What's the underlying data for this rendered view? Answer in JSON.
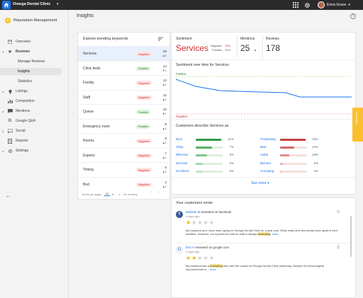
{
  "topbar": {
    "org_name": "Omega Dental Clinic",
    "user_name": "Erica Grace"
  },
  "sidebar": {
    "brand": "Reputation Management",
    "items": [
      {
        "label": "Overview"
      },
      {
        "label": "Reviews"
      },
      {
        "label": "Manage Reviews"
      },
      {
        "label": "Insights"
      },
      {
        "label": "Statistics"
      },
      {
        "label": "Listings"
      },
      {
        "label": "Competition"
      },
      {
        "label": "Mentions"
      },
      {
        "label": "Google Q&A"
      },
      {
        "label": "Social"
      },
      {
        "label": "Reports"
      },
      {
        "label": "Settings"
      }
    ]
  },
  "page": {
    "title": "Insights"
  },
  "keywords": {
    "title": "Explore trending keywords",
    "rows": [
      {
        "name": "Services",
        "badge": "Negative",
        "count": "28",
        "trend": "▲1"
      },
      {
        "name": "Clinic beds",
        "badge": "Positive",
        "count": "14",
        "trend": "▼1"
      },
      {
        "name": "Facility",
        "badge": "Negative",
        "count": "13",
        "trend": "▲1"
      },
      {
        "name": "Staff",
        "badge": "Negative",
        "count": "12",
        "trend": "▲1"
      },
      {
        "name": "Queue",
        "badge": "Positive",
        "count": "10",
        "trend": "▼1"
      },
      {
        "name": "Emergency room",
        "badge": "Positive",
        "count": "9",
        "trend": "▲1"
      },
      {
        "name": "Rooms",
        "badge": "Negative",
        "count": "8",
        "trend": "▲1"
      },
      {
        "name": "Experts",
        "badge": "Negative",
        "count": "7",
        "trend": "▲1"
      },
      {
        "name": "Timing",
        "badge": "Negative",
        "count": "5",
        "trend": "▲1"
      },
      {
        "name": "Bed",
        "badge": "Negative",
        "count": "2",
        "trend": "▲1"
      }
    ],
    "footer": {
      "per_page_label": "Items per page:",
      "per_page_value": "10",
      "range": "1 – 10 of many"
    }
  },
  "summary": {
    "sentiment_label": "Sentiment",
    "sentiment_value": "Services",
    "negative_label": "Negative",
    "negative_pct": "78%",
    "positive_label": "Positive",
    "positive_pct": "22%",
    "mentions_label": "Mentions",
    "mentions_value": "25",
    "reviews_label": "Reviews",
    "reviews_value": "178"
  },
  "sentiment_chart": {
    "title": "Sentiment over time for Services",
    "top_label": "Positive",
    "bottom_label": "Negative",
    "line_color": "#1a73e8"
  },
  "describe": {
    "title": "Customers describe Services as",
    "positive": [
      {
        "word": "Nice",
        "pct": "11%",
        "value": 11
      },
      {
        "word": "Okay",
        "pct": "7%",
        "value": 7
      },
      {
        "word": "Effective",
        "pct": "5%",
        "value": 5
      },
      {
        "word": "Not bad",
        "pct": "3%",
        "value": 3
      },
      {
        "word": "Excellent",
        "pct": "3%",
        "value": 3
      }
    ],
    "negative": [
      {
        "word": "Frustrating",
        "pct": "43%",
        "value": 43
      },
      {
        "word": "Bad",
        "pct": "24%",
        "value": 24
      },
      {
        "word": "Awful",
        "pct": "16%",
        "value": 16
      },
      {
        "word": "Bizzare",
        "pct": "5%",
        "value": 5
      },
      {
        "word": "Annoying",
        "pct": "4%",
        "value": 4
      }
    ],
    "see_more": "See more"
  },
  "feedback_tab": "Feedback",
  "reviews": {
    "title": "Your customers wrote",
    "items": [
      {
        "author": "Melanie M",
        "action": " reviewed on facebook",
        "ago": "4 days ago",
        "rating": 1,
        "body_pre": "My husband and I have been going to Omega Dental Clinic for a year now. What really sets this dental clinic apart is their facilities. However, our experience with he staff is always ",
        "highlight": "frustrating",
        "body_post": ". ",
        "more": "more"
      },
      {
        "author": "Erin H",
        "action": " reviewed on google.com",
        "ago": "4 days ago",
        "rating": 2,
        "body_pre": "My husband had a ",
        "highlight": "frustrating",
        "body_post": " time with the nurses at Omega Dental Clinic yesterday. Despite it's technological improvements in... ",
        "more": "more"
      }
    ]
  }
}
